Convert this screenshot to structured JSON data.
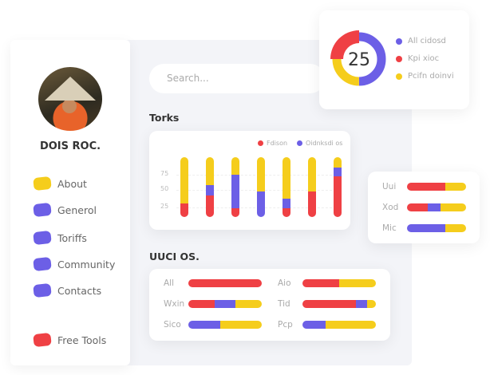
{
  "colors": {
    "red": "#ef4044",
    "purple": "#6c5fe6",
    "yellow": "#f5cd1c"
  },
  "profile": {
    "name": "DOIS ROC."
  },
  "sidebar": {
    "items": [
      {
        "label": "About",
        "color": "#f5cd1c"
      },
      {
        "label": "Generol",
        "color": "#6c5fe6"
      },
      {
        "label": "Toriffs",
        "color": "#6c5fe6"
      },
      {
        "label": "Community",
        "color": "#6c5fe6"
      },
      {
        "label": "Contacts",
        "color": "#6c5fe6"
      },
      {
        "label": "Free Tools",
        "color": "#ef4044"
      }
    ]
  },
  "search": {
    "placeholder": "Search..."
  },
  "donut": {
    "value": "25",
    "legend": [
      {
        "label": "All cidosd",
        "color": "#6c5fe6"
      },
      {
        "label": "Kpi xioc",
        "color": "#ef4044"
      },
      {
        "label": "Pcifn doinvi",
        "color": "#f5cd1c"
      }
    ],
    "segments": [
      {
        "color": "#6c5fe6",
        "value": 50
      },
      {
        "color": "#f5cd1c",
        "value": 25
      },
      {
        "color": "#ef4044",
        "value": 25
      }
    ]
  },
  "torks": {
    "title": "Torks",
    "legend": [
      {
        "label": "Fdison",
        "color": "#ef4044"
      },
      {
        "label": "Oidnksdi os",
        "color": "#6c5fe6"
      }
    ],
    "yticks": [
      "75",
      "50",
      "25"
    ],
    "bars": [
      {
        "red": 23,
        "purple": 0,
        "yellow": 77
      },
      {
        "red": 36,
        "purple": 17,
        "yellow": 47
      },
      {
        "red": 15,
        "purple": 56,
        "yellow": 29
      },
      {
        "red": 0,
        "purple": 43,
        "yellow": 57
      },
      {
        "red": 15,
        "purple": 16,
        "yellow": 69
      },
      {
        "red": 43,
        "purple": 0,
        "yellow": 57
      },
      {
        "red": 68,
        "purple": 15,
        "yellow": 17
      }
    ]
  },
  "side_card": {
    "rows": [
      {
        "label": "Uui",
        "red": 65,
        "purple": 0,
        "yellow": 35
      },
      {
        "label": "Xod",
        "red": 35,
        "purple": 22,
        "yellow": 43
      },
      {
        "label": "Mic",
        "red": 0,
        "purple": 65,
        "yellow": 35
      }
    ]
  },
  "uuci": {
    "title": "UUCI OS.",
    "rows": [
      {
        "label": "All",
        "red": 100,
        "purple": 0,
        "yellow": 0
      },
      {
        "label": "Wxin",
        "red": 36,
        "purple": 28,
        "yellow": 36
      },
      {
        "label": "Sico",
        "red": 0,
        "purple": 43,
        "yellow": 57
      },
      {
        "label": "Aio",
        "red": 50,
        "purple": 0,
        "yellow": 50
      },
      {
        "label": "Tid",
        "red": 73,
        "purple": 15,
        "yellow": 12
      },
      {
        "label": "Pcp",
        "red": 0,
        "purple": 31,
        "yellow": 69
      }
    ]
  }
}
